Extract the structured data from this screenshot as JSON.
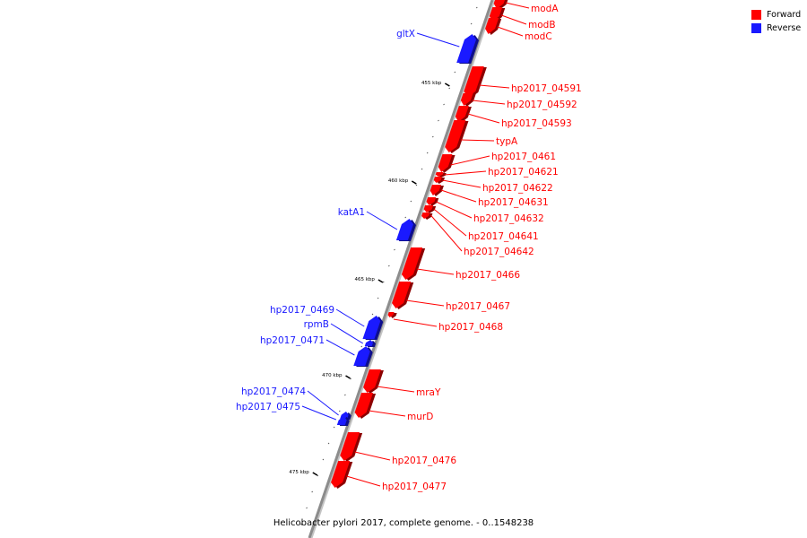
{
  "caption": "Helicobacter pylori 2017, complete genome. - 0..1548238",
  "legend": [
    {
      "label": "Forward",
      "color": "#ff0000"
    },
    {
      "label": "Reverse",
      "color": "#1a1aff"
    }
  ],
  "colors": {
    "forward": "#ff0000",
    "reverse": "#1a1aff",
    "axis": "#8c8c8c"
  },
  "ticks": [
    "455 kbp",
    "460 kbp",
    "465 kbp",
    "470 kbp",
    "475 kbp"
  ],
  "genes": [
    {
      "name": "modA",
      "strand": "forward"
    },
    {
      "name": "modB",
      "strand": "forward"
    },
    {
      "name": "modC",
      "strand": "forward"
    },
    {
      "name": "gltX",
      "strand": "reverse"
    },
    {
      "name": "hp2017_04591",
      "strand": "forward"
    },
    {
      "name": "hp2017_04592",
      "strand": "forward"
    },
    {
      "name": "hp2017_04593",
      "strand": "forward"
    },
    {
      "name": "typA",
      "strand": "forward"
    },
    {
      "name": "hp2017_0461",
      "strand": "forward"
    },
    {
      "name": "hp2017_04621",
      "strand": "forward"
    },
    {
      "name": "hp2017_04622",
      "strand": "forward"
    },
    {
      "name": "hp2017_04631",
      "strand": "forward"
    },
    {
      "name": "hp2017_04632",
      "strand": "forward"
    },
    {
      "name": "hp2017_04641",
      "strand": "forward"
    },
    {
      "name": "hp2017_04642",
      "strand": "forward"
    },
    {
      "name": "katA1",
      "strand": "reverse"
    },
    {
      "name": "hp2017_0466",
      "strand": "forward"
    },
    {
      "name": "hp2017_0467",
      "strand": "forward"
    },
    {
      "name": "hp2017_0468",
      "strand": "forward"
    },
    {
      "name": "hp2017_0469",
      "strand": "reverse"
    },
    {
      "name": "rpmB",
      "strand": "reverse"
    },
    {
      "name": "hp2017_0471",
      "strand": "reverse"
    },
    {
      "name": "mraY",
      "strand": "forward"
    },
    {
      "name": "murD",
      "strand": "forward"
    },
    {
      "name": "hp2017_0474",
      "strand": "reverse"
    },
    {
      "name": "hp2017_0475",
      "strand": "reverse"
    },
    {
      "name": "hp2017_0476",
      "strand": "forward"
    },
    {
      "name": "hp2017_0477",
      "strand": "forward"
    }
  ]
}
